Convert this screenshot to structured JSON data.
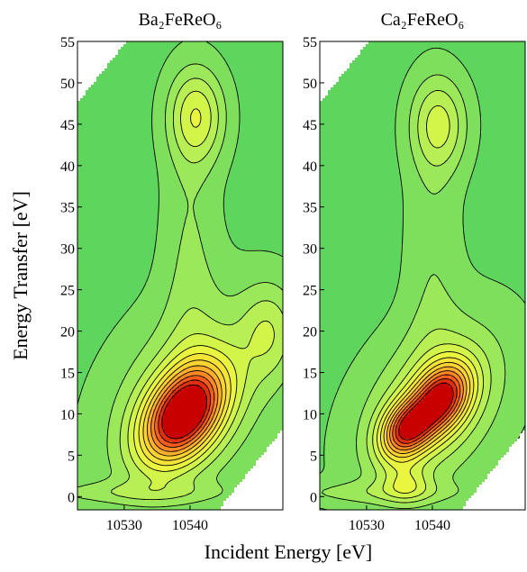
{
  "chart_data": [
    {
      "type": "contour",
      "title": "Ba₂FeReO₆",
      "xlabel": "Incident Energy [eV]",
      "ylabel": "Energy Transfer [eV]",
      "xlim": [
        10522.9,
        10554.1
      ],
      "ylim": [
        -1.6,
        55
      ],
      "xticks": [
        10530,
        10540
      ],
      "yticks": [
        0,
        5,
        10,
        15,
        20,
        25,
        30,
        35,
        40,
        45,
        50,
        55
      ],
      "emission_range": [
        10475,
        10546.3
      ],
      "base": 1.6,
      "levels": [
        1,
        2,
        3,
        4,
        5,
        6,
        7,
        8,
        9,
        10,
        11,
        12,
        13
      ],
      "colormap": [
        "#5ed65e",
        "#a8ec5a",
        "#e8f840",
        "#ffd030",
        "#ff7020",
        "#c80000"
      ],
      "peaks": [
        {
          "center": [
            10539,
            10
          ],
          "width": [
            5,
            3.2
          ],
          "angle": 40,
          "amp": 11.5
        },
        {
          "center": [
            10540,
            12
          ],
          "width": [
            10,
            7
          ],
          "angle": 40,
          "amp": 3
        },
        {
          "center": [
            10541,
            46
          ],
          "width": [
            3,
            4
          ],
          "angle": 0,
          "amp": 4
        },
        {
          "center": [
            10540,
            30
          ],
          "width": [
            3,
            12
          ],
          "angle": 0,
          "amp": 1.4
        },
        {
          "center": [
            10530,
            0.5
          ],
          "width": [
            12,
            1
          ],
          "angle": 0,
          "amp": 1.5
        },
        {
          "center": [
            10552,
            20
          ],
          "width": [
            3,
            4
          ],
          "angle": 0,
          "amp": 2.5
        }
      ]
    },
    {
      "type": "contour",
      "title": "Ca₂FeReO₆",
      "xlim": [
        10522.9,
        10554.1
      ],
      "ylim": [
        -1.6,
        55
      ],
      "xticks": [
        10530,
        10540
      ],
      "yticks": [
        0,
        5,
        10,
        15,
        20,
        25,
        30,
        35,
        40,
        45,
        50,
        55
      ],
      "emission_range": [
        10475,
        10546.3
      ],
      "base": 1.6,
      "levels": [
        1,
        2,
        3,
        4,
        5,
        6,
        7,
        8,
        9,
        10,
        11,
        12,
        13
      ],
      "colormap": [
        "#5ed65e",
        "#a8ec5a",
        "#e8f840",
        "#ffd030",
        "#ff7020",
        "#c80000"
      ],
      "peaks": [
        {
          "center": [
            10536,
            8
          ],
          "width": [
            3,
            2.2
          ],
          "angle": 35,
          "amp": 8.5
        },
        {
          "center": [
            10541.5,
            12
          ],
          "width": [
            3.5,
            2.5
          ],
          "angle": 40,
          "amp": 9
        },
        {
          "center": [
            10540,
            11
          ],
          "width": [
            9,
            6
          ],
          "angle": 40,
          "amp": 3.5
        },
        {
          "center": [
            10536,
            1.5
          ],
          "width": [
            2.5,
            1.5
          ],
          "angle": 0,
          "amp": 2.5
        },
        {
          "center": [
            10541,
            45
          ],
          "width": [
            3,
            4
          ],
          "angle": 0,
          "amp": 3.5
        },
        {
          "center": [
            10540,
            30
          ],
          "width": [
            3,
            12
          ],
          "angle": 0,
          "amp": 1.2
        },
        {
          "center": [
            10530,
            0.5
          ],
          "width": [
            12,
            1
          ],
          "angle": 0,
          "amp": 1.3
        }
      ]
    }
  ]
}
